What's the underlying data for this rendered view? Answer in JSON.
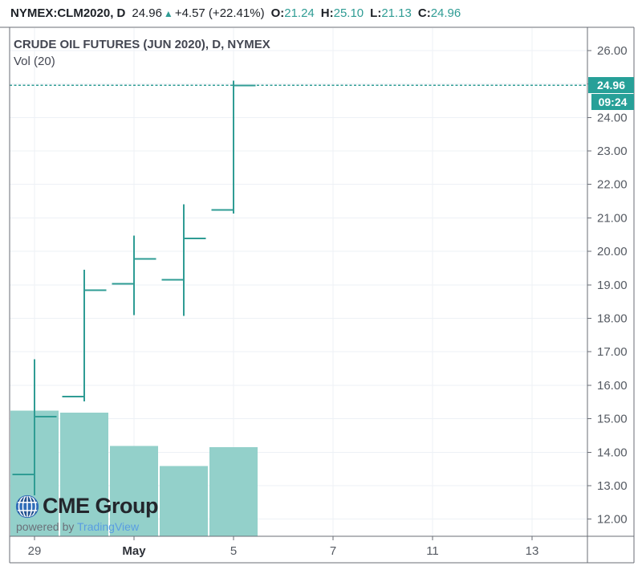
{
  "header": {
    "symbol": "NYMEX:CLM2020, D",
    "last_price": "24.96",
    "direction_icon": "up-triangle",
    "change": "+4.57 (+22.41%)",
    "o_label": "O:",
    "o_value": "21.24",
    "h_label": "H:",
    "h_value": "25.10",
    "l_label": "L:",
    "l_value": "21.13",
    "c_label": "C:",
    "c_value": "24.96"
  },
  "legend": {
    "title": "CRUDE OIL FUTURES (JUN 2020), D, NYMEX",
    "indicator": "Vol (20)"
  },
  "price_axis": {
    "last_price_label": "24.96",
    "countdown_label": "09:24"
  },
  "watermark": {
    "logo_text": "CME Group",
    "powered_by": "powered by ",
    "provider": "TradingView"
  },
  "colors": {
    "accent_teal": "#2f9c94",
    "badge_bg": "#27a098",
    "volume_fill": "#93d0ca",
    "grid": "#edf1f6",
    "border": "#6a6e76",
    "axis_text": "#555a62",
    "axis_text_bold": "#2e3138",
    "header_text": "#1c2026",
    "legend_text": "#434651",
    "tv_blue": "#599de2",
    "globe_blue": "#2f6db8",
    "globe_dark": "#20508f"
  },
  "chart_data": {
    "type": "bar",
    "subtype": "ohlc-with-volume",
    "title": "CRUDE OIL FUTURES (JUN 2020), D, NYMEX",
    "symbol": "NYMEX:CLM2020",
    "interval": "D",
    "bars": [
      {
        "bar_index": 0,
        "open": 13.34,
        "high": 16.78,
        "low": 12.71,
        "close": 15.06,
        "volume_rel": 1.0
      },
      {
        "bar_index": 1,
        "open": 15.66,
        "high": 19.45,
        "low": 15.52,
        "close": 18.84,
        "volume_rel": 0.985
      },
      {
        "bar_index": 2,
        "open": 19.03,
        "high": 20.47,
        "low": 18.1,
        "close": 19.78,
        "volume_rel": 0.72
      },
      {
        "bar_index": 3,
        "open": 19.15,
        "high": 21.41,
        "low": 18.07,
        "close": 20.39,
        "volume_rel": 0.56
      },
      {
        "bar_index": 4,
        "open": 21.24,
        "high": 25.1,
        "low": 21.13,
        "close": 24.96,
        "volume_rel": 0.71
      }
    ],
    "last_price": 24.96,
    "last_price_line": "dashed",
    "y_ticks": [
      "26.00",
      "25.00",
      "24.00",
      "23.00",
      "22.00",
      "21.00",
      "20.00",
      "19.00",
      "18.00",
      "17.00",
      "16.00",
      "15.00",
      "14.00",
      "13.00",
      "12.00"
    ],
    "x_ticks": [
      {
        "bar_index": 0,
        "label": "29",
        "bold": false
      },
      {
        "bar_index": 2,
        "label": "May",
        "bold": true
      },
      {
        "bar_index": 4,
        "label": "5",
        "bold": false
      },
      {
        "bar_index": 6,
        "label": "7",
        "bold": false
      },
      {
        "bar_index": 8,
        "label": "11",
        "bold": false
      },
      {
        "bar_index": 10,
        "label": "13",
        "bold": false
      }
    ],
    "ylim": [
      11.49,
      26.67
    ],
    "grid": true,
    "legend_position": "top-left",
    "volume_pane_frac": 0.247
  }
}
